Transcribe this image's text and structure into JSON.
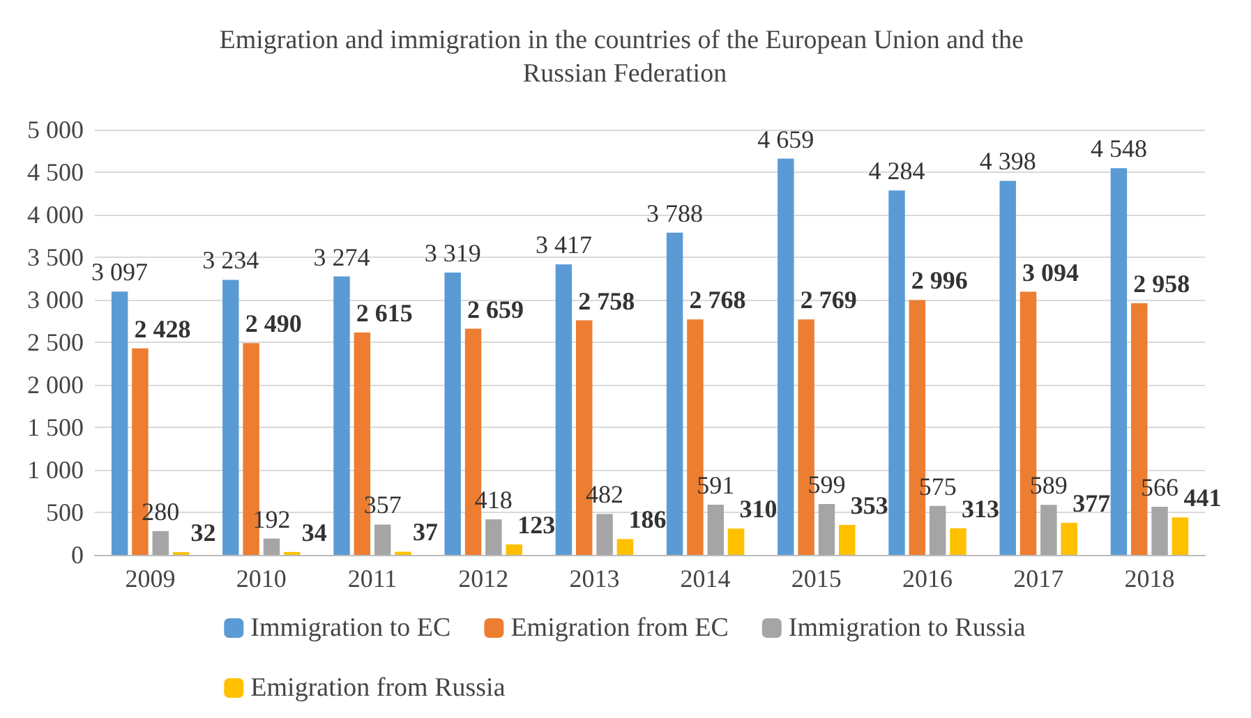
{
  "chart_data": {
    "type": "bar",
    "title": "Emigration and immigration in the countries of the European Union and the Russian Federation",
    "categories": [
      "2009",
      "2010",
      "2011",
      "2012",
      "2013",
      "2014",
      "2015",
      "2016",
      "2017",
      "2018"
    ],
    "series": [
      {
        "name": "Immigration to EC",
        "color": "#5b9bd5",
        "values": [
          3097,
          3234,
          3274,
          3319,
          3417,
          3788,
          4659,
          4284,
          4398,
          4548
        ],
        "value_labels": [
          "3 097",
          "3 234",
          "3 274",
          "3 319",
          "3 417",
          "3 788",
          "4 659",
          "4 284",
          "4 398",
          "4 548"
        ]
      },
      {
        "name": "Emigration from EC",
        "color": "#ed7d31",
        "values": [
          2428,
          2490,
          2615,
          2659,
          2758,
          2768,
          2769,
          2996,
          3094,
          2958
        ],
        "value_labels": [
          "2 428",
          "2 490",
          "2 615",
          "2 659",
          "2 758",
          "2 768",
          "2 769",
          "2 996",
          "3 094",
          "2 958"
        ]
      },
      {
        "name": "Immigration to Russia",
        "color": "#a5a5a5",
        "values": [
          280,
          192,
          357,
          418,
          482,
          591,
          599,
          575,
          589,
          566
        ],
        "value_labels": [
          "280",
          "192",
          "357",
          "418",
          "482",
          "591",
          "599",
          "575",
          "589",
          "566"
        ]
      },
      {
        "name": "Emigration from Russia",
        "color": "#ffc000",
        "values": [
          32,
          34,
          37,
          123,
          186,
          310,
          353,
          313,
          377,
          441
        ],
        "value_labels": [
          "32",
          "34",
          "37",
          "123",
          "186",
          "310",
          "353",
          "313",
          "377",
          "441"
        ]
      }
    ],
    "ylim": [
      0,
      5000
    ],
    "yticks": [
      0,
      {
        "value": 500,
        "label": "500"
      },
      {
        "value": 1000,
        "label": "1 000"
      },
      {
        "value": 1500,
        "label": "1 500"
      },
      {
        "value": 2000,
        "label": "2 000"
      },
      {
        "value": 2500,
        "label": "2 500"
      },
      {
        "value": 3000,
        "label": "3 000"
      },
      {
        "value": 3500,
        "label": "3 500"
      },
      {
        "value": 4000,
        "label": "4 000"
      },
      {
        "value": 4500,
        "label": "4 500"
      },
      {
        "value": 5000,
        "label": "5 000"
      }
    ],
    "grid": "y",
    "legend": "bottom"
  }
}
